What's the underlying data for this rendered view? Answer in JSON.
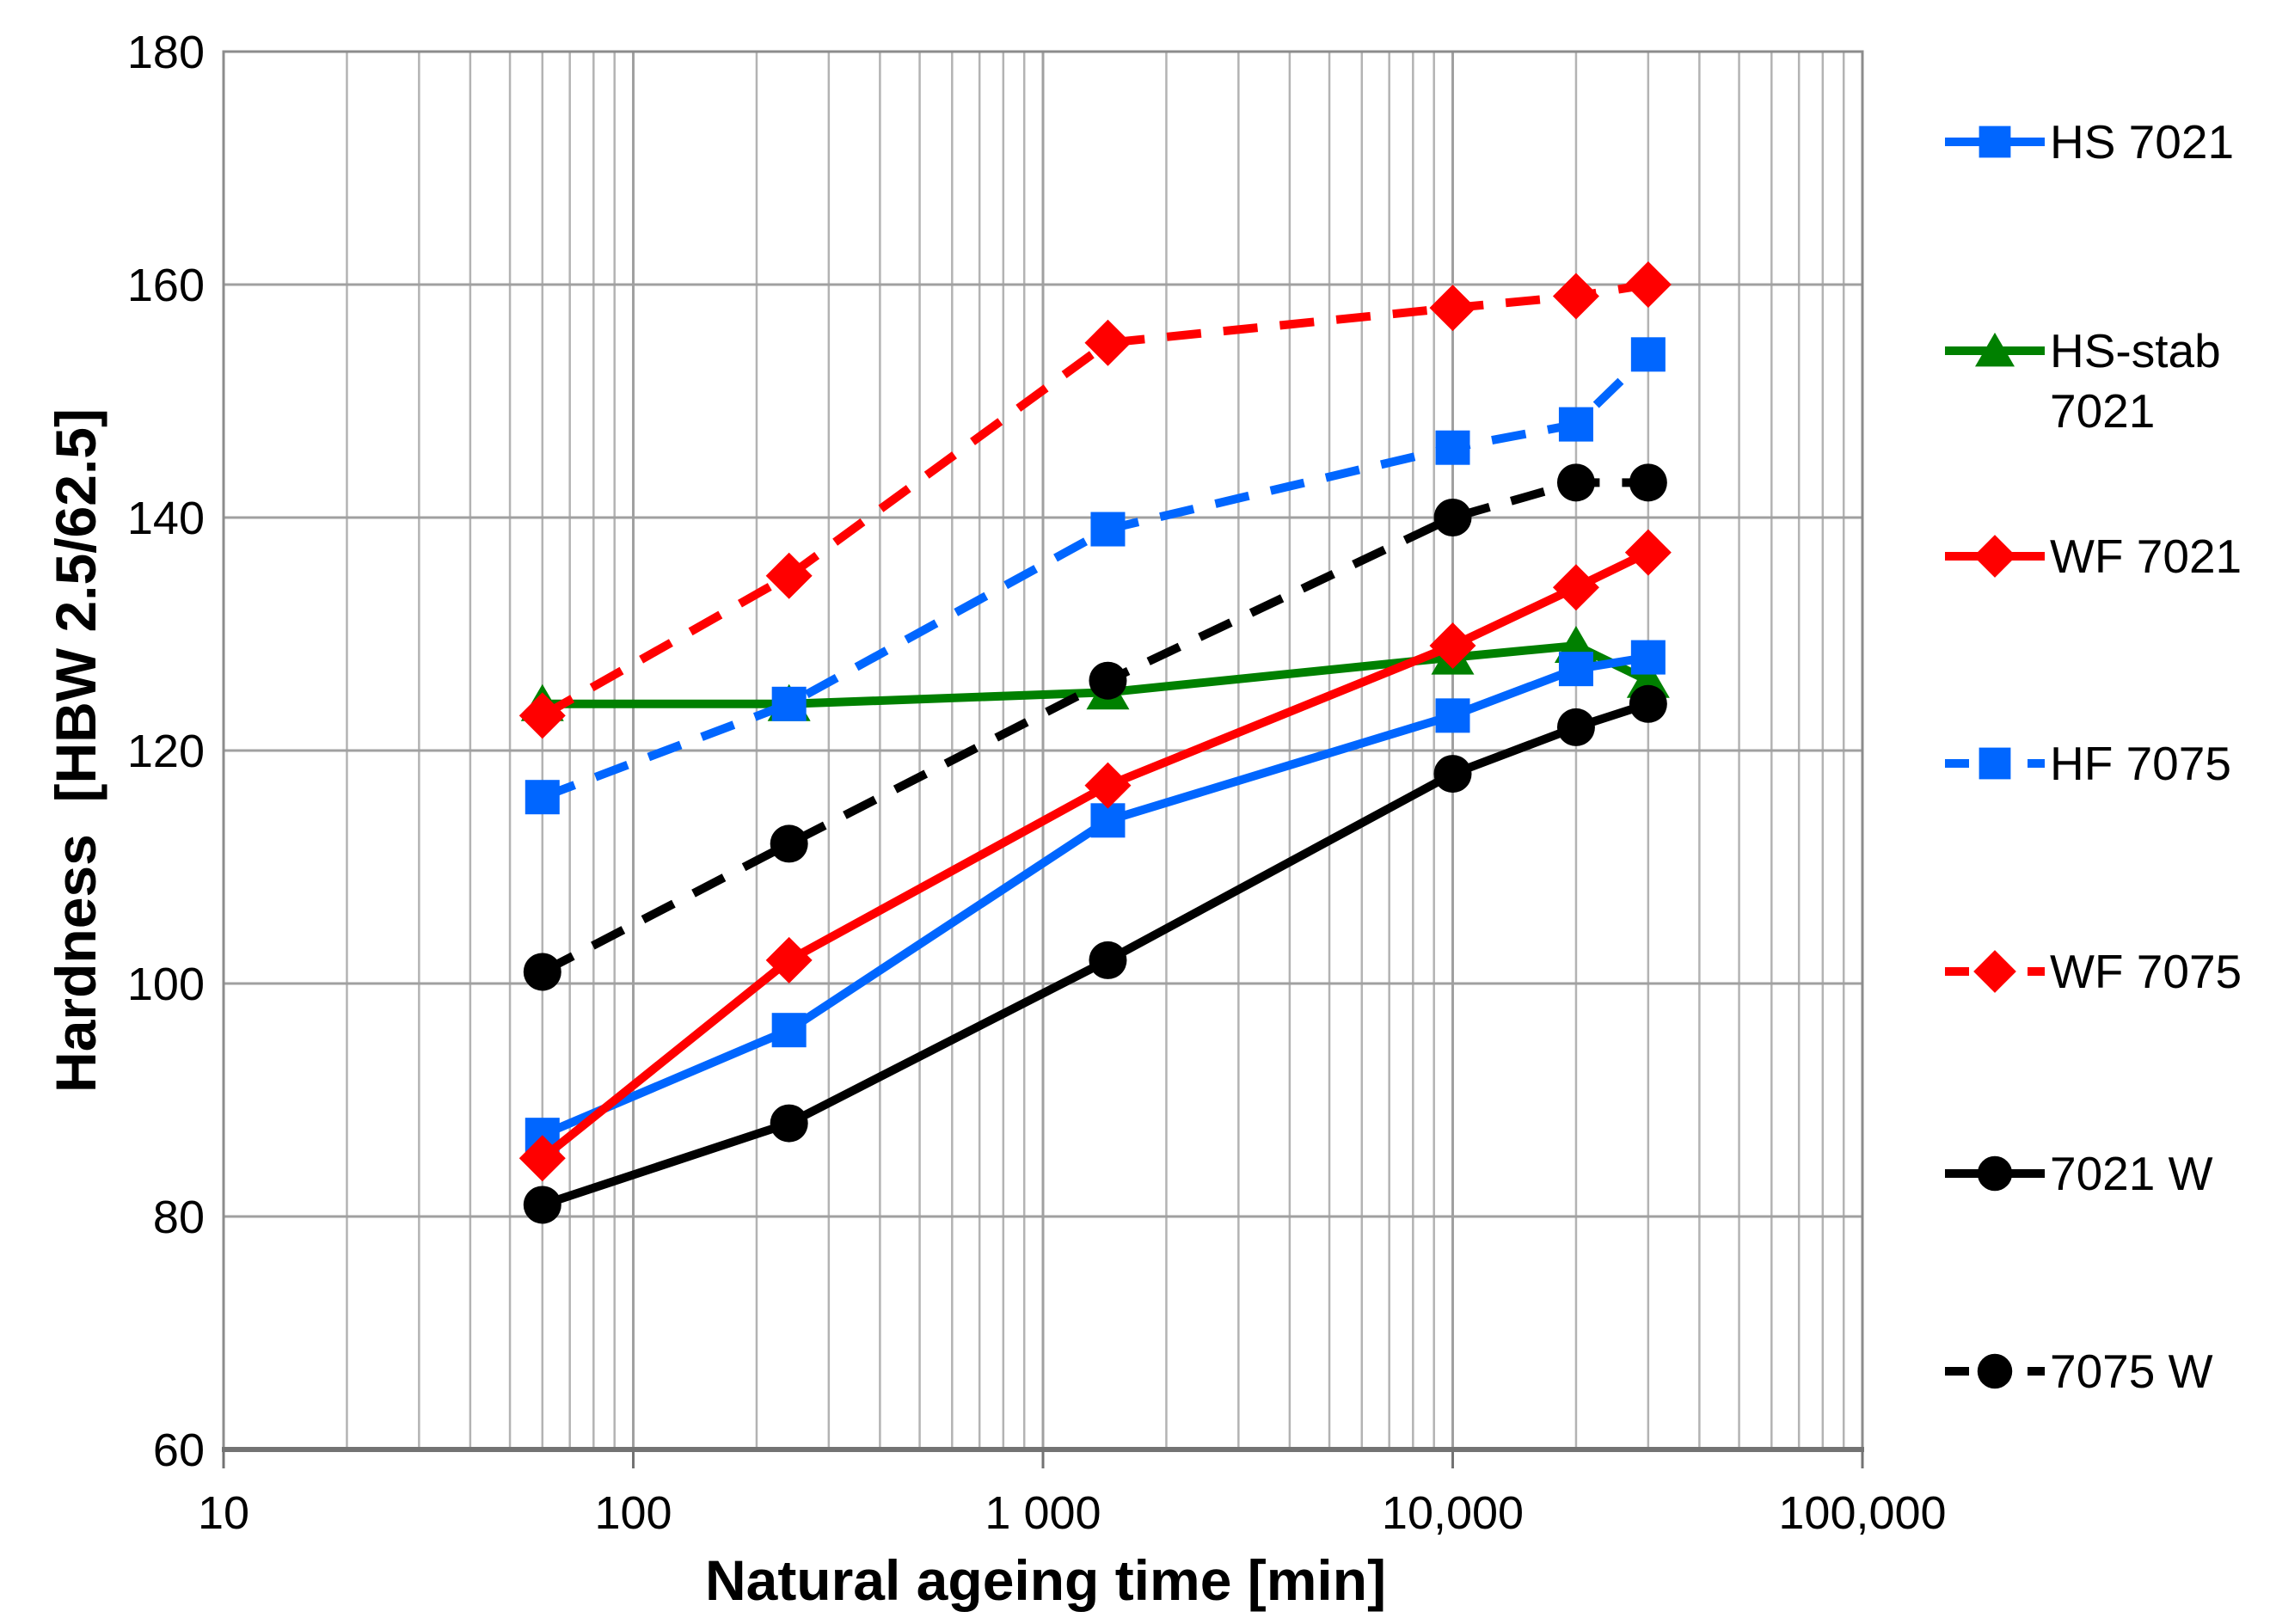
{
  "chart_data": {
    "type": "line",
    "title": "",
    "xlabel": "Natural ageing time [min]",
    "ylabel": "Hardness  [HBW 2.5/62.5]",
    "x_scale": "log",
    "xlim": [
      10,
      100000
    ],
    "ylim": [
      60,
      180
    ],
    "grid": "major-y + log-minor-x, gray",
    "legend_position": "right",
    "y_ticks": [
      60,
      80,
      100,
      120,
      140,
      160,
      180
    ],
    "x_ticks": [
      {
        "value": 10,
        "label": "10"
      },
      {
        "value": 100,
        "label": "100"
      },
      {
        "value": 1000,
        "label": "1 000"
      },
      {
        "value": 10000,
        "label": "10,000"
      },
      {
        "value": 100000,
        "label": "100,000"
      }
    ],
    "x": [
      60,
      240,
      1440,
      10000,
      20000,
      30000
    ],
    "series": [
      {
        "name": "HS 7021",
        "legend_lines": [
          "HS 7021"
        ],
        "color": "#0066FF",
        "dash": "solid",
        "marker": "square",
        "values": [
          87,
          96,
          114,
          123,
          127,
          128
        ]
      },
      {
        "name": "HS-stab 7021",
        "legend_lines": [
          "HS-stab",
          "7021"
        ],
        "color": "#008000",
        "dash": "solid",
        "marker": "triangle",
        "values": [
          124,
          124,
          125,
          128,
          129,
          126
        ]
      },
      {
        "name": "WF 7021",
        "legend_lines": [
          "WF 7021"
        ],
        "color": "#FF0000",
        "dash": "solid",
        "marker": "diamond",
        "values": [
          85,
          102,
          117,
          129,
          134,
          137
        ]
      },
      {
        "name": "HF 7075",
        "legend_lines": [
          "HF 7075"
        ],
        "color": "#0066FF",
        "dash": "dashed",
        "marker": "square",
        "values": [
          116,
          124,
          139,
          146,
          148,
          154
        ]
      },
      {
        "name": "WF 7075",
        "legend_lines": [
          "WF 7075"
        ],
        "color": "#FF0000",
        "dash": "dashed",
        "marker": "diamond",
        "values": [
          123,
          135,
          155,
          158,
          159,
          160
        ]
      },
      {
        "name": "7021 W",
        "legend_lines": [
          "7021 W"
        ],
        "color": "#000000",
        "dash": "solid",
        "marker": "circle",
        "values": [
          81,
          88,
          102,
          118,
          122,
          124
        ]
      },
      {
        "name": "7075 W",
        "legend_lines": [
          "7075 W"
        ],
        "color": "#000000",
        "dash": "dashed",
        "marker": "circle",
        "values": [
          101,
          112,
          126,
          140,
          143,
          143
        ]
      }
    ],
    "draw_order": [
      1,
      3,
      4,
      6,
      0,
      2,
      5
    ]
  },
  "colors": {
    "background": "#FFFFFF",
    "grid_minor": "#B3B3B3",
    "grid_major": "#A0A0A0",
    "plot_border": "#8C8C8C",
    "axis_line": "#737373",
    "series_blue": "#0066FF",
    "series_red": "#FF0000",
    "series_green": "#008000",
    "series_black": "#000000"
  }
}
